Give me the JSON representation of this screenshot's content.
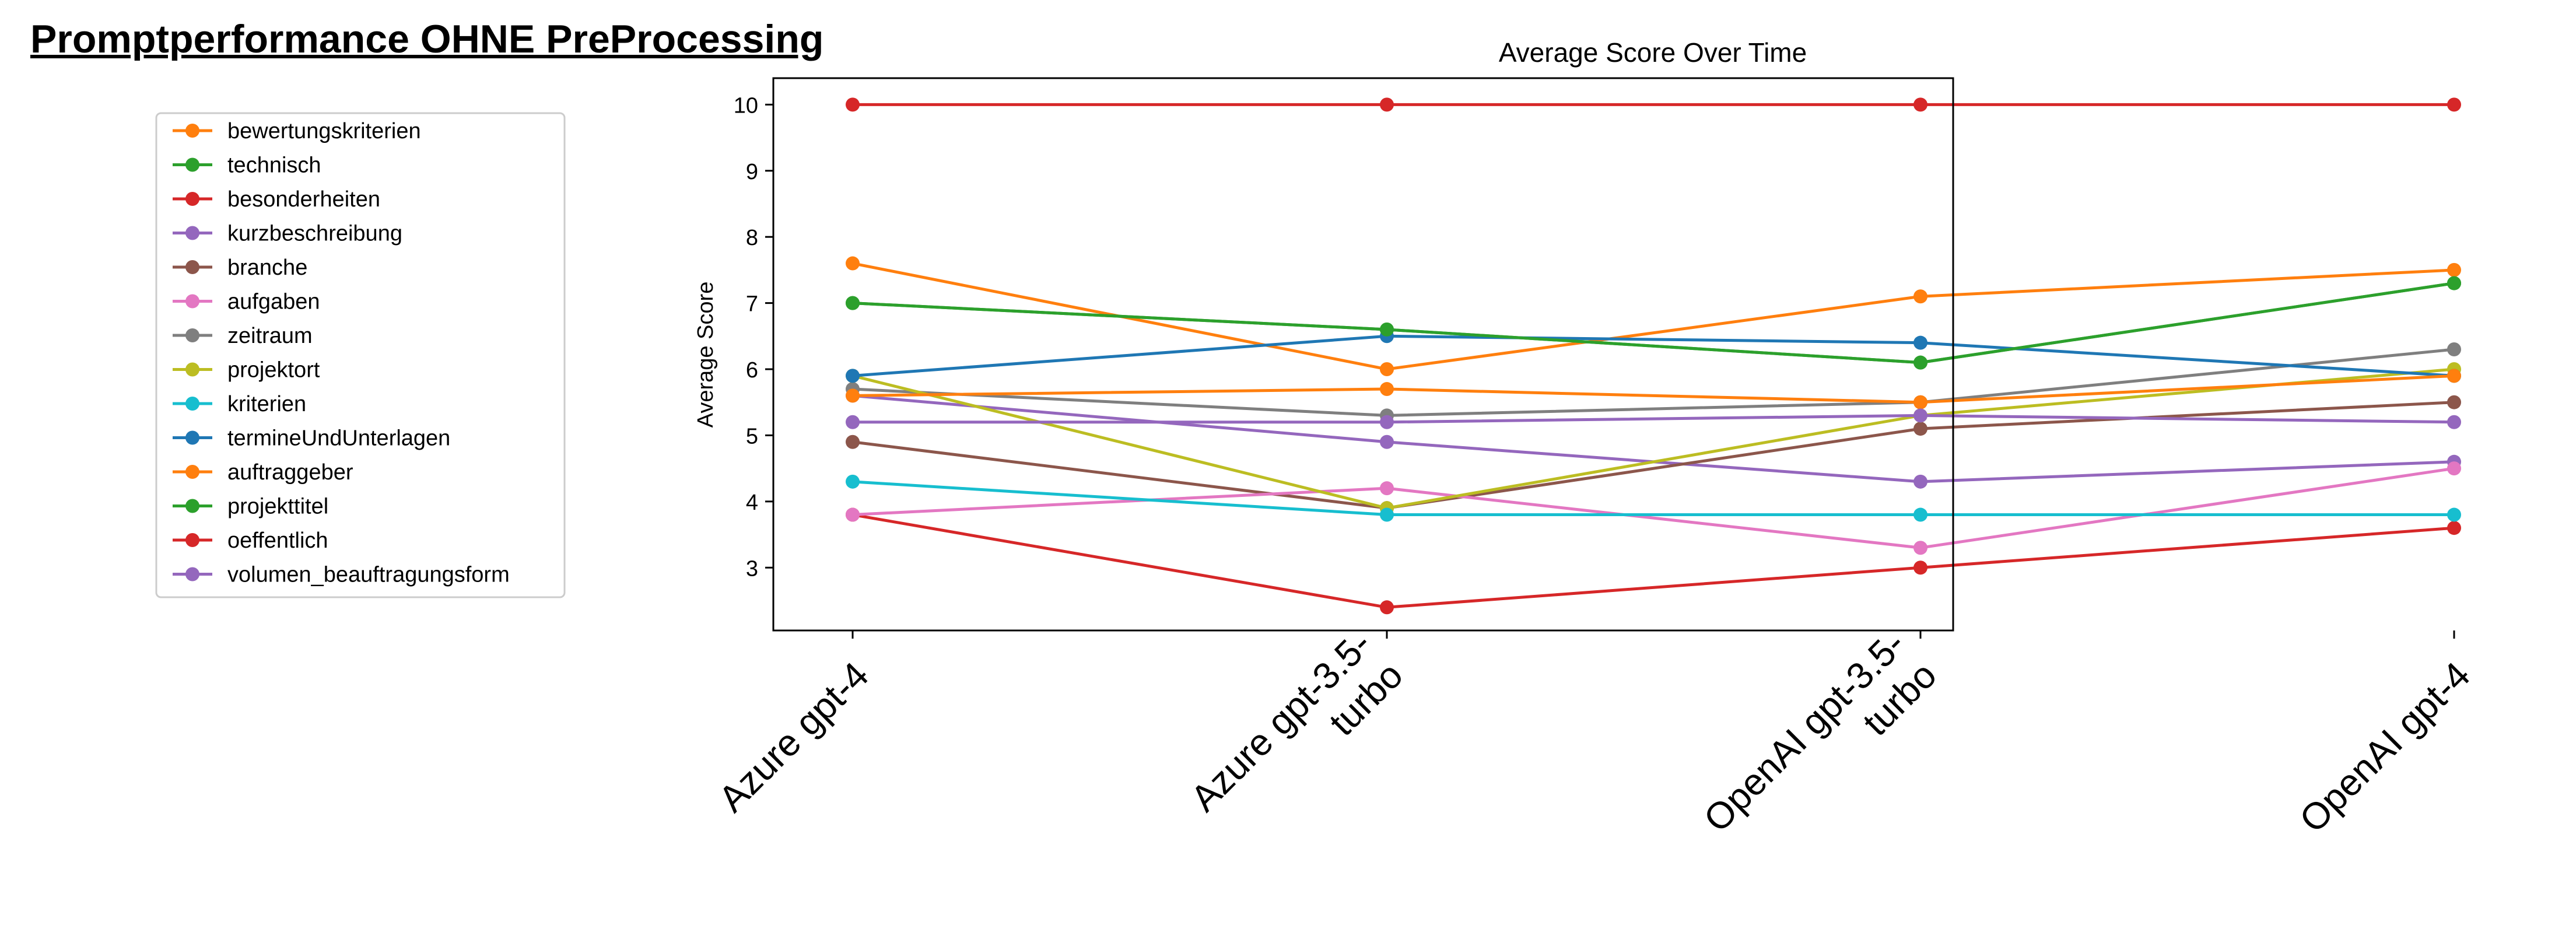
{
  "page_title": "Promptperformance OHNE PreProcessing",
  "chart_data": {
    "type": "line",
    "title": "Average Score Over Time",
    "xlabel": "",
    "ylabel": "Average Score",
    "categories": [
      "Azure gpt-4",
      "Azure gpt-3.5-turbo",
      "OpenAI gpt-3.5-turbo",
      "OpenAI gpt-4"
    ],
    "category_lines": [
      [
        "Azure gpt-4"
      ],
      [
        "Azure gpt-3.5-",
        "turbo"
      ],
      [
        "OpenAI gpt-3.5-",
        "turbo"
      ],
      [
        "OpenAI gpt-4"
      ]
    ],
    "yticks": [
      3,
      4,
      5,
      6,
      7,
      8,
      9,
      10
    ],
    "ylim": [
      2.05,
      10.4
    ],
    "grid": false,
    "legend_position": "left, outside plot",
    "series": [
      {
        "name": "bewertungskriterien",
        "color": "#ff7f0e",
        "values": [
          7.6,
          6.0,
          7.1,
          7.5
        ]
      },
      {
        "name": "technisch",
        "color": "#2ca02c",
        "values": [
          7.0,
          6.6,
          6.1,
          7.3
        ]
      },
      {
        "name": "besonderheiten",
        "color": "#d62728",
        "values": [
          3.8,
          2.4,
          3.0,
          3.6
        ]
      },
      {
        "name": "kurzbeschreibung",
        "color": "#9467bd",
        "values": [
          5.6,
          4.9,
          4.3,
          4.6
        ]
      },
      {
        "name": "branche",
        "color": "#8c564b",
        "values": [
          4.9,
          3.9,
          5.1,
          5.5
        ]
      },
      {
        "name": "aufgaben",
        "color": "#e377c2",
        "values": [
          3.8,
          4.2,
          3.3,
          4.5
        ]
      },
      {
        "name": "zeitraum",
        "color": "#7f7f7f",
        "values": [
          5.7,
          5.3,
          5.5,
          6.3
        ]
      },
      {
        "name": "projektort",
        "color": "#bcbd22",
        "values": [
          5.9,
          3.9,
          5.3,
          6.0
        ]
      },
      {
        "name": "kriterien",
        "color": "#17becf",
        "values": [
          4.3,
          3.8,
          3.8,
          3.8
        ]
      },
      {
        "name": "termineUndUnterlagen",
        "color": "#1f77b4",
        "values": [
          5.9,
          6.5,
          6.4,
          5.9
        ]
      },
      {
        "name": "auftraggeber",
        "color": "#ff7f0e",
        "values": [
          5.6,
          5.7,
          5.5,
          5.9
        ]
      },
      {
        "name": "projekttitel",
        "color": "#2ca02c",
        "values": [
          7.0,
          6.6,
          6.1,
          7.3
        ]
      },
      {
        "name": "oeffentlich",
        "color": "#d62728",
        "values": [
          10,
          10,
          10,
          10
        ]
      },
      {
        "name": "volumen_beauftragungsform",
        "color": "#9467bd",
        "values": [
          5.2,
          5.2,
          5.3,
          5.2
        ]
      }
    ]
  }
}
